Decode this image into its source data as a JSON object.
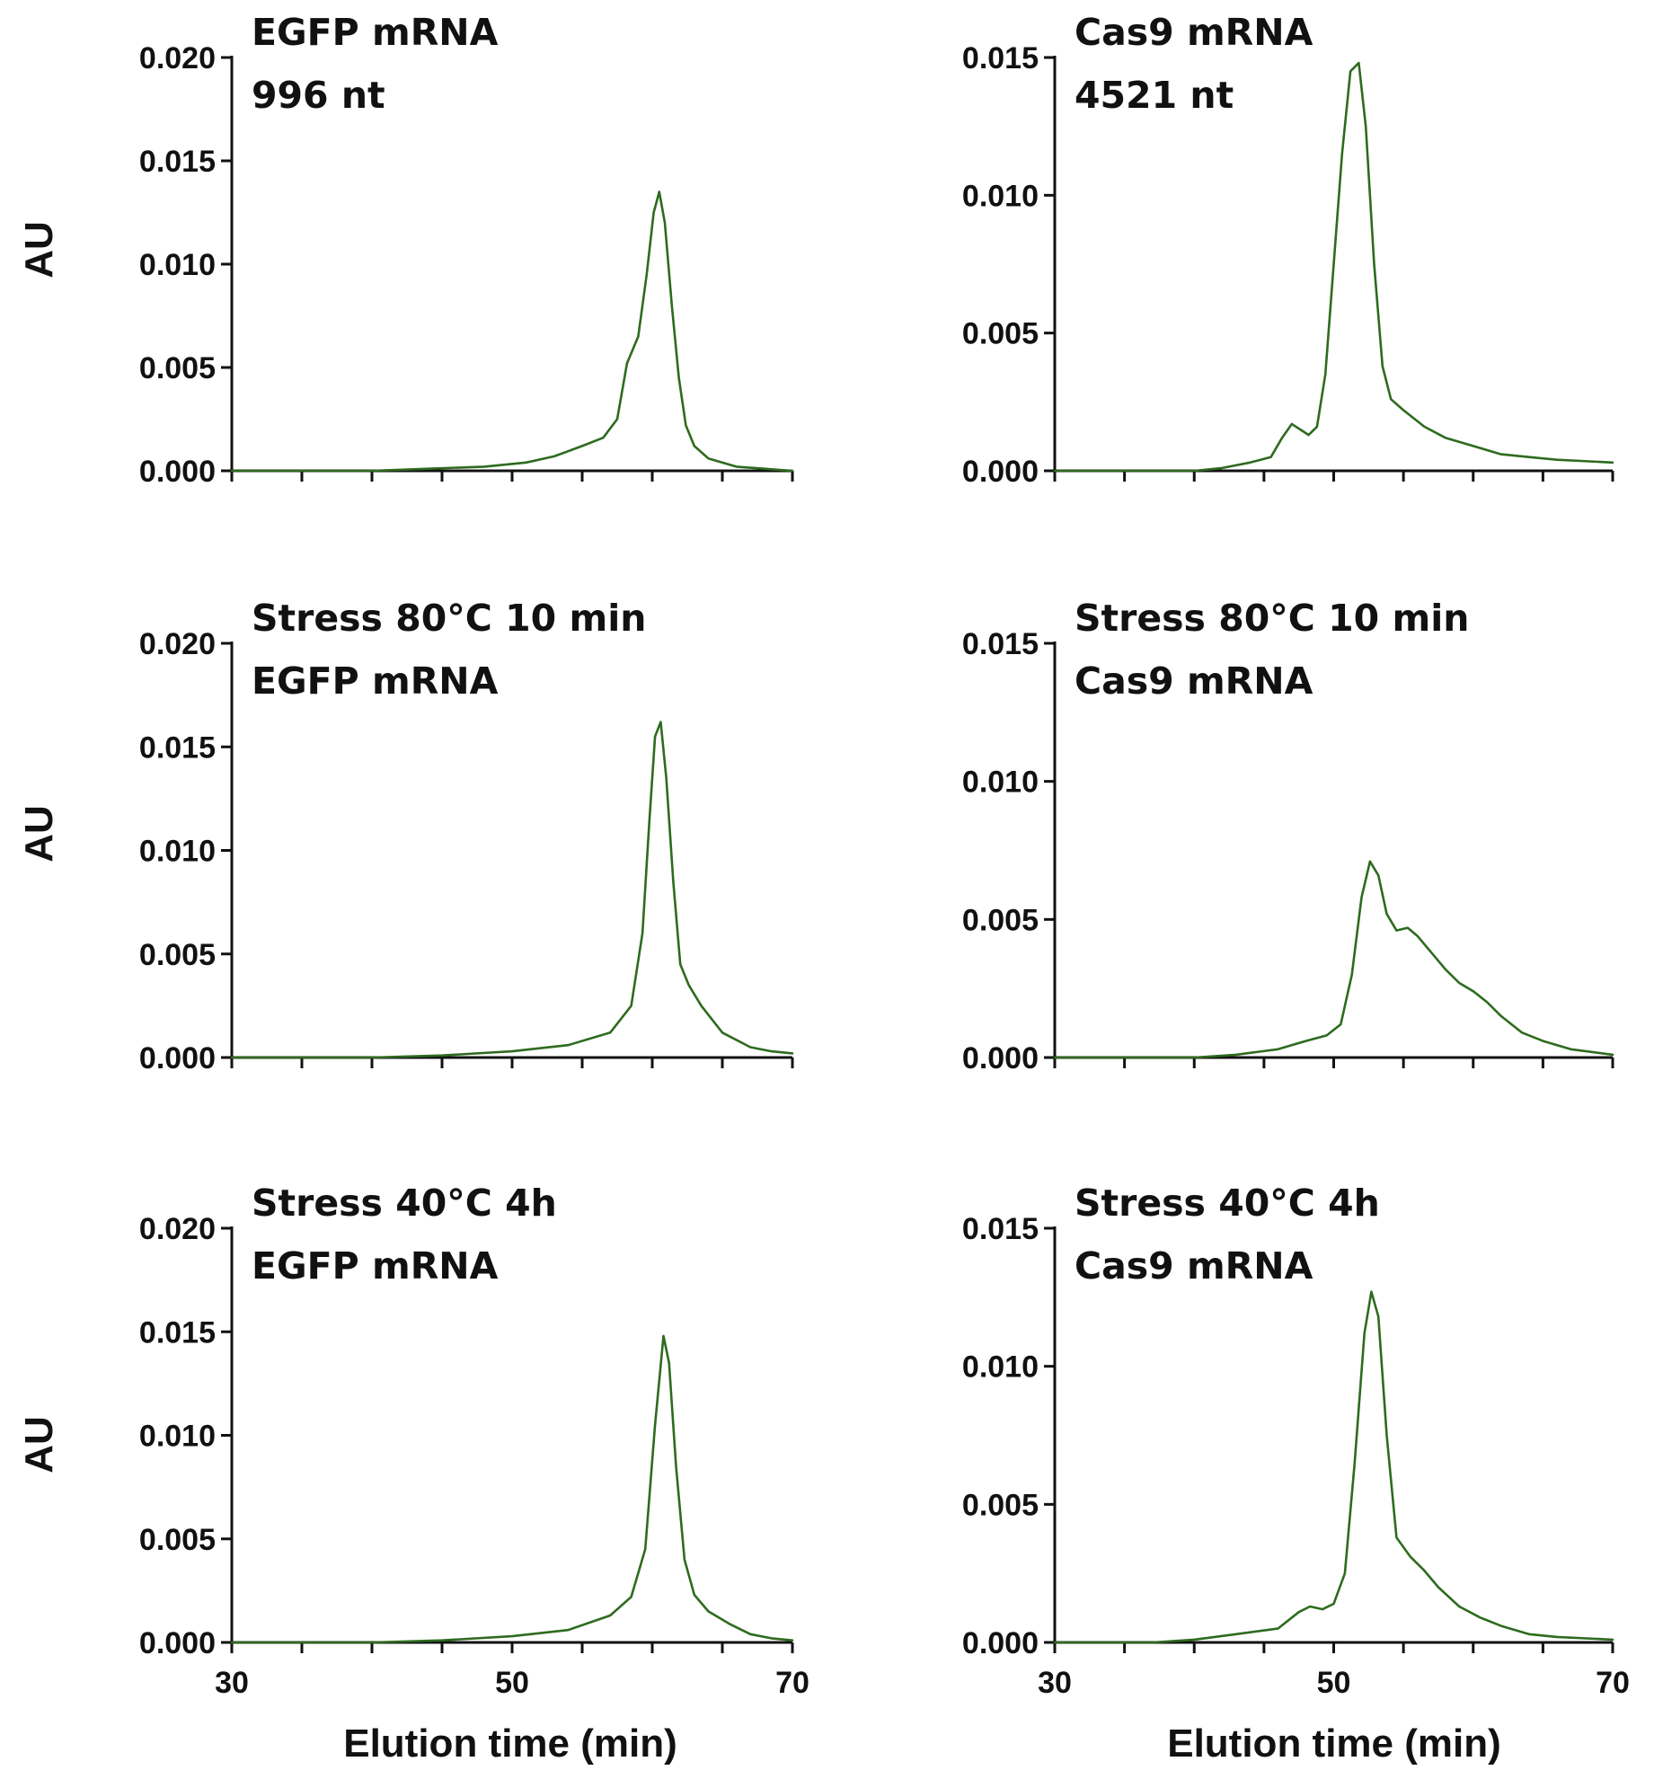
{
  "figure": {
    "line_color": "#2e6b1f",
    "axis_color": "#111111",
    "xlabel_bottom": "Elution time (min)",
    "ylabel_left": "AU"
  },
  "chart_data": [
    {
      "id": "p11",
      "type": "line",
      "annotation": [
        "EGFP mRNA",
        "996 nt"
      ],
      "ylabel": "AU",
      "xlabel": "",
      "xlim": [
        30,
        70
      ],
      "xticks": [
        30,
        50,
        70
      ],
      "xticks_shown": false,
      "ylim": [
        0,
        0.02
      ],
      "yticks": [
        "0.000",
        "0.005",
        "0.010",
        "0.015",
        "0.020"
      ],
      "series": [
        {
          "name": "EGFP mRNA",
          "x": [
            30,
            35,
            40,
            44,
            48,
            51,
            53,
            55,
            56.5,
            57.5,
            58.2,
            59,
            59.6,
            60.1,
            60.5,
            60.9,
            61.4,
            61.9,
            62.4,
            63,
            64,
            66,
            68,
            70
          ],
          "y": [
            0,
            0,
            0,
            0.0001,
            0.0002,
            0.0004,
            0.0007,
            0.0012,
            0.0016,
            0.0025,
            0.0052,
            0.0065,
            0.0095,
            0.0125,
            0.0135,
            0.012,
            0.008,
            0.0045,
            0.0022,
            0.0012,
            0.0006,
            0.0002,
            0.0001,
            0
          ]
        }
      ]
    },
    {
      "id": "p12",
      "type": "line",
      "annotation": [
        "Cas9 mRNA",
        "4521 nt"
      ],
      "ylabel": "",
      "xlabel": "",
      "xlim": [
        30,
        70
      ],
      "xticks": [
        30,
        50,
        70
      ],
      "xticks_shown": false,
      "ylim": [
        0,
        0.015
      ],
      "yticks": [
        "0.000",
        "0.005",
        "0.010",
        "0.015"
      ],
      "series": [
        {
          "name": "Cas9 mRNA",
          "x": [
            30,
            38,
            40,
            42,
            44,
            45.5,
            46.3,
            47,
            47.6,
            48.2,
            48.8,
            49.4,
            50,
            50.6,
            51.2,
            51.8,
            52.3,
            52.9,
            53.5,
            54.1,
            55,
            56.5,
            58,
            60,
            62,
            64,
            66,
            70
          ],
          "y": [
            0,
            0,
            0,
            0.0001,
            0.0003,
            0.0005,
            0.0012,
            0.0017,
            0.0015,
            0.0013,
            0.0016,
            0.0035,
            0.0075,
            0.0115,
            0.0145,
            0.0148,
            0.0125,
            0.0075,
            0.0038,
            0.0026,
            0.0022,
            0.0016,
            0.0012,
            0.0009,
            0.0006,
            0.0005,
            0.0004,
            0.0003
          ]
        }
      ]
    },
    {
      "id": "p21",
      "type": "line",
      "annotation": [
        "Stress 80°C 10 min",
        "EGFP mRNA"
      ],
      "ylabel": "AU",
      "xlabel": "",
      "xlim": [
        30,
        70
      ],
      "xticks": [
        30,
        50,
        70
      ],
      "xticks_shown": false,
      "ylim": [
        0,
        0.02
      ],
      "yticks": [
        "0.000",
        "0.005",
        "0.010",
        "0.015",
        "0.020"
      ],
      "series": [
        {
          "name": "Stress 80°C 10 min EGFP mRNA",
          "x": [
            30,
            40,
            45,
            50,
            54,
            57,
            58.5,
            59.3,
            59.8,
            60.2,
            60.6,
            61,
            61.5,
            62,
            62.6,
            63.5,
            65,
            67,
            68.5,
            70
          ],
          "y": [
            0,
            0,
            0.0001,
            0.0003,
            0.0006,
            0.0012,
            0.0025,
            0.006,
            0.0115,
            0.0155,
            0.0162,
            0.0135,
            0.0085,
            0.0045,
            0.0035,
            0.0025,
            0.0012,
            0.0005,
            0.0003,
            0.0002
          ]
        }
      ]
    },
    {
      "id": "p22",
      "type": "line",
      "annotation": [
        "Stress 80°C 10 min",
        "Cas9 mRNA"
      ],
      "ylabel": "",
      "xlabel": "",
      "xlim": [
        30,
        70
      ],
      "xticks": [
        30,
        50,
        70
      ],
      "xticks_shown": false,
      "ylim": [
        0,
        0.015
      ],
      "yticks": [
        "0.000",
        "0.005",
        "0.010",
        "0.015"
      ],
      "series": [
        {
          "name": "Stress 80°C 10 min Cas9 mRNA",
          "x": [
            30,
            40,
            43,
            46,
            48,
            49.5,
            50.5,
            51.3,
            52,
            52.6,
            53.2,
            53.8,
            54.5,
            55.3,
            56,
            57,
            58,
            59,
            60,
            61,
            62,
            63.5,
            65,
            67,
            70
          ],
          "y": [
            0,
            0,
            0.0001,
            0.0003,
            0.0006,
            0.0008,
            0.0012,
            0.003,
            0.0058,
            0.0071,
            0.0066,
            0.0052,
            0.0046,
            0.0047,
            0.0044,
            0.0038,
            0.0032,
            0.0027,
            0.0024,
            0.002,
            0.0015,
            0.0009,
            0.0006,
            0.0003,
            0.0001
          ]
        }
      ]
    },
    {
      "id": "p31",
      "type": "line",
      "annotation": [
        "Stress 40°C 4h",
        "EGFP mRNA"
      ],
      "ylabel": "AU",
      "xlabel": "Elution time (min)",
      "xlim": [
        30,
        70
      ],
      "xticks": [
        30,
        50,
        70
      ],
      "xticks_shown": true,
      "ylim": [
        0,
        0.02
      ],
      "yticks": [
        "0.000",
        "0.005",
        "0.010",
        "0.015",
        "0.020"
      ],
      "series": [
        {
          "name": "Stress 40°C 4h EGFP mRNA",
          "x": [
            30,
            40,
            45,
            50,
            54,
            57,
            58.5,
            59.5,
            60.2,
            60.8,
            61.2,
            61.7,
            62.3,
            63,
            64,
            65.5,
            67,
            68.5,
            70
          ],
          "y": [
            0,
            0,
            0.0001,
            0.0003,
            0.0006,
            0.0013,
            0.0022,
            0.0045,
            0.0105,
            0.0148,
            0.0135,
            0.0085,
            0.004,
            0.0023,
            0.0015,
            0.0009,
            0.0004,
            0.0002,
            0.0001
          ]
        }
      ]
    },
    {
      "id": "p32",
      "type": "line",
      "annotation": [
        "Stress 40°C 4h",
        "Cas9 mRNA"
      ],
      "ylabel": "",
      "xlabel": "Elution time (min)",
      "xlim": [
        30,
        70
      ],
      "xticks": [
        30,
        50,
        70
      ],
      "xticks_shown": true,
      "ylim": [
        0,
        0.015
      ],
      "yticks": [
        "0.000",
        "0.005",
        "0.010",
        "0.015"
      ],
      "series": [
        {
          "name": "Stress 40°C 4h Cas9 mRNA",
          "x": [
            30,
            37,
            40,
            43,
            46,
            47.5,
            48.3,
            49.2,
            50,
            50.8,
            51.5,
            52.2,
            52.7,
            53.2,
            53.8,
            54.5,
            55.5,
            56.5,
            57.5,
            59,
            60.5,
            62,
            64,
            66,
            70
          ],
          "y": [
            0,
            0,
            0.0001,
            0.0003,
            0.0005,
            0.0011,
            0.0013,
            0.0012,
            0.0014,
            0.0025,
            0.0065,
            0.0112,
            0.0127,
            0.0118,
            0.0075,
            0.0038,
            0.0031,
            0.0026,
            0.002,
            0.0013,
            0.0009,
            0.0006,
            0.0003,
            0.0002,
            0.0001
          ]
        }
      ]
    }
  ]
}
